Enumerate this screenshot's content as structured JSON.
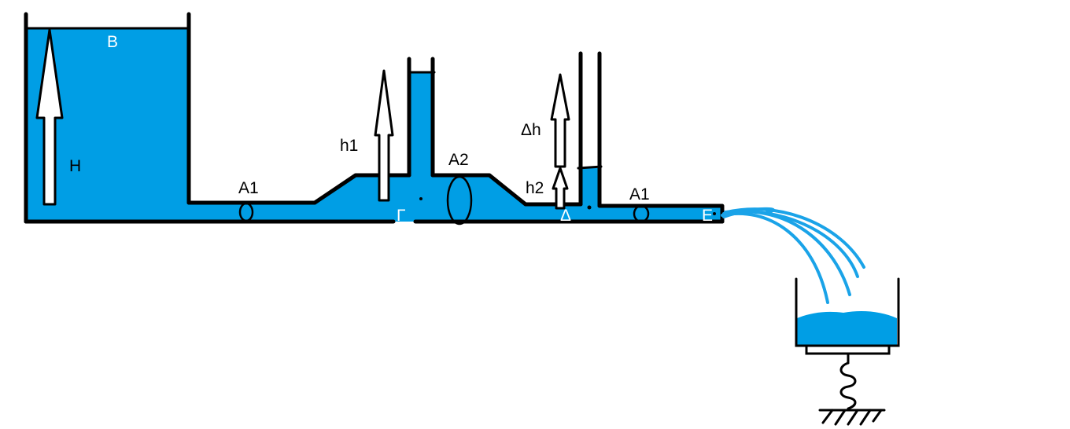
{
  "labels": {
    "B": "B",
    "H": "H",
    "A1_left": "A1",
    "h1": "h1",
    "A2": "A2",
    "Gamma": "Γ",
    "Delta_h": "Δh",
    "h2": "h2",
    "Delta": "Δ",
    "A1_right": "A1",
    "E": "E"
  },
  "colors": {
    "water": "#009ee5",
    "outline": "#000000",
    "label_on_water": "#ffffff",
    "label_default": "#000000",
    "jet": "#1aa3e8"
  }
}
